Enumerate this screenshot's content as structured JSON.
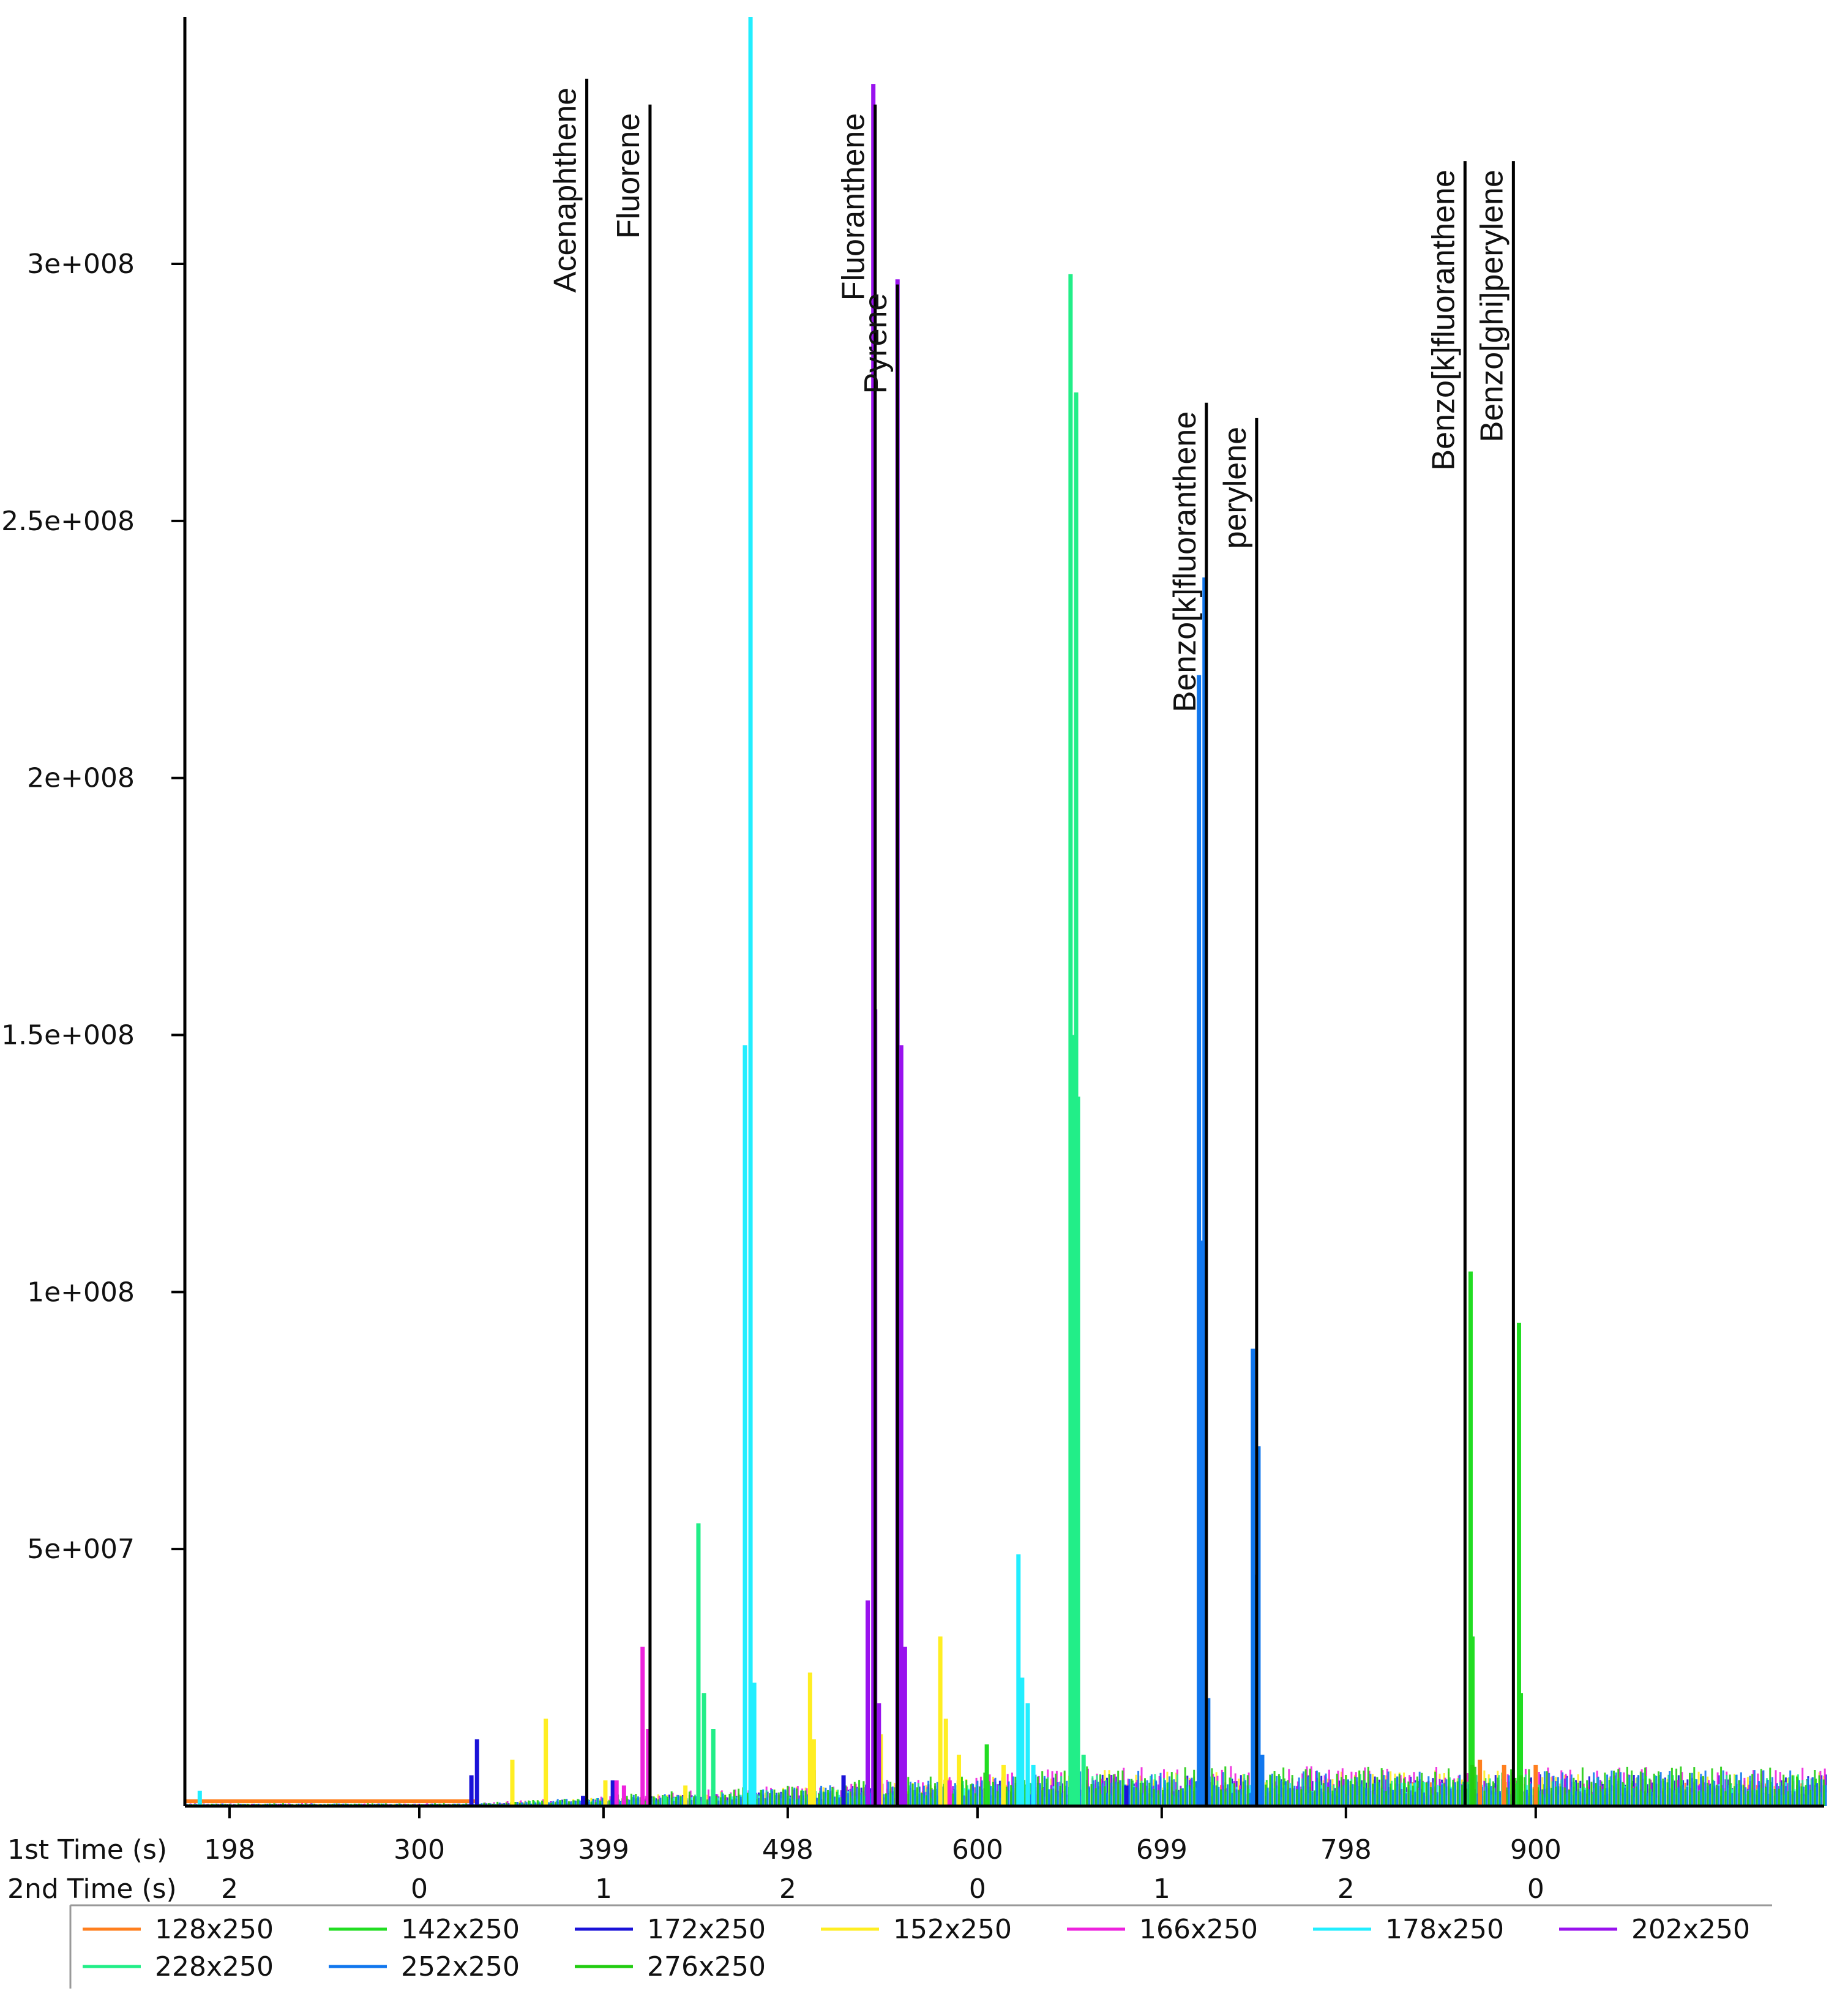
{
  "chart_data": {
    "type": "line",
    "title": "",
    "xlabel": "1st Time (s)",
    "x2label": "2nd Time (s)",
    "ylabel": "",
    "xlim": [
      174,
      1055
    ],
    "ylim": [
      0,
      348000000
    ],
    "grid": false,
    "y_ticks": [
      {
        "value": 50000000,
        "label": "5e+007"
      },
      {
        "value": 100000000,
        "label": "1e+008"
      },
      {
        "value": 150000000,
        "label": "1.5e+008"
      },
      {
        "value": 200000000,
        "label": "2e+008"
      },
      {
        "value": 250000000,
        "label": "2.5e+008"
      },
      {
        "value": 300000000,
        "label": "3e+008"
      }
    ],
    "x_ticks": [
      {
        "value": 198,
        "label": "198",
        "second": "2"
      },
      {
        "value": 300,
        "label": "300",
        "second": "0"
      },
      {
        "value": 399,
        "label": "399",
        "second": "1"
      },
      {
        "value": 498,
        "label": "498",
        "second": "2"
      },
      {
        "value": 600,
        "label": "600",
        "second": "0"
      },
      {
        "value": 699,
        "label": "699",
        "second": "1"
      },
      {
        "value": 798,
        "label": "798",
        "second": "2"
      },
      {
        "value": 900,
        "label": "900",
        "second": "0"
      }
    ],
    "legend_position": "bottom",
    "series": [
      {
        "name": "128x250",
        "color": "#ff7f1e",
        "peaks": [
          [
            870,
            9000000
          ],
          [
            883,
            8000000
          ],
          [
            900,
            8000000
          ]
        ]
      },
      {
        "name": "142x250",
        "color": "#22dd22",
        "peaks": [
          [
            605,
            12000000
          ],
          [
            865,
            104000000
          ],
          [
            866,
            33000000
          ],
          [
            891,
            94000000
          ],
          [
            892,
            22000000
          ]
        ]
      },
      {
        "name": "172x250",
        "color": "#1a12d8",
        "peaks": [
          [
            328,
            6000000
          ],
          [
            331,
            13000000
          ],
          [
            388,
            2000000
          ],
          [
            404,
            5000000
          ],
          [
            512,
            7000000
          ],
          [
            528,
            6000000
          ],
          [
            561,
            3000000
          ],
          [
            590,
            3000000
          ],
          [
            680,
            4000000
          ]
        ]
      },
      {
        "name": "152x250",
        "color": "#ffee22",
        "peaks": [
          [
            350,
            9000000
          ],
          [
            368,
            17000000
          ],
          [
            400,
            5000000
          ],
          [
            443,
            4000000
          ],
          [
            510,
            26000000
          ],
          [
            512,
            13000000
          ],
          [
            548,
            14000000
          ],
          [
            580,
            33000000
          ],
          [
            583,
            17000000
          ],
          [
            590,
            10000000
          ],
          [
            614,
            8000000
          ]
        ]
      },
      {
        "name": "166x250",
        "color": "#ee22dd",
        "peaks": [
          [
            406,
            5000000
          ],
          [
            410,
            4000000
          ],
          [
            420,
            31000000
          ],
          [
            423,
            15000000
          ],
          [
            547,
            5000000
          ],
          [
            585,
            5000000
          ]
        ]
      },
      {
        "name": "178x250",
        "color": "#22eeff",
        "peaks": [
          [
            182,
            3000000
          ],
          [
            475,
            148000000
          ],
          [
            478,
            350000000
          ],
          [
            480,
            24000000
          ],
          [
            622,
            49000000
          ],
          [
            624,
            25000000
          ],
          [
            627,
            20000000
          ],
          [
            630,
            8000000
          ]
        ]
      },
      {
        "name": "202x250",
        "color": "#9912ee",
        "peaks": [
          [
            541,
            40000000
          ],
          [
            544,
            335000000
          ],
          [
            545,
            155000000
          ],
          [
            547,
            20000000
          ],
          [
            557,
            297000000
          ],
          [
            559,
            148000000
          ],
          [
            561,
            31000000
          ]
        ]
      },
      {
        "name": "228x250",
        "color": "#22ee88",
        "peaks": [
          [
            432,
            2000000
          ],
          [
            450,
            55000000
          ],
          [
            453,
            22000000
          ],
          [
            458,
            15000000
          ],
          [
            650,
            298000000
          ],
          [
            651,
            150000000
          ],
          [
            653,
            275000000
          ],
          [
            654,
            138000000
          ],
          [
            657,
            10000000
          ]
        ]
      },
      {
        "name": "252x250",
        "color": "#1177ee",
        "peaks": [
          [
            719,
            220000000
          ],
          [
            721,
            110000000
          ],
          [
            722,
            239000000
          ],
          [
            724,
            21000000
          ],
          [
            748,
            89000000
          ],
          [
            749,
            45000000
          ],
          [
            751,
            70000000
          ],
          [
            753,
            10000000
          ]
        ]
      },
      {
        "name": "276x250",
        "color": "#22cc11",
        "peaks": [
          [
            866,
            8000000
          ],
          [
            892,
            6000000
          ]
        ]
      }
    ],
    "annotations": [
      {
        "label": "Acenaphthene",
        "x": 390,
        "top": 336000000
      },
      {
        "label": "Fluorene",
        "x": 424,
        "top": 331000000
      },
      {
        "label": "Fluoranthene",
        "x": 545,
        "top": 331000000
      },
      {
        "label": "Pyrene",
        "x": 557,
        "top": 296000000
      },
      {
        "label": "Benzo[k]fluoranthene",
        "x": 723,
        "top": 273000000
      },
      {
        "label": "perylene",
        "x": 750,
        "top": 270000000
      },
      {
        "label": "Benzo[k]fluoranthene",
        "x": 862,
        "top": 320000000
      },
      {
        "label": "Benzo[ghi]perylene",
        "x": 888,
        "top": 320000000
      }
    ]
  }
}
